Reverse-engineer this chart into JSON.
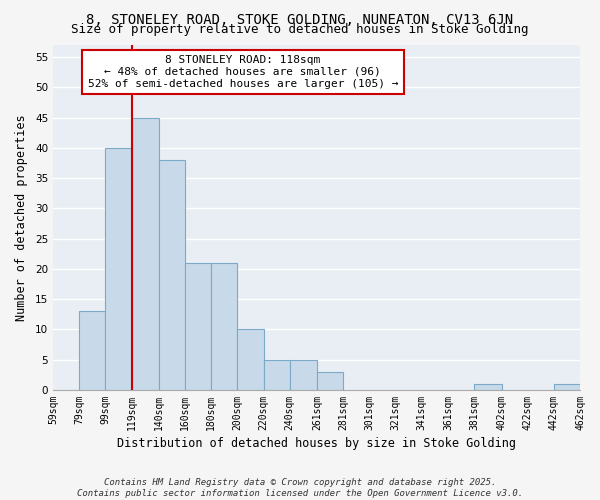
{
  "title": "8, STONELEY ROAD, STOKE GOLDING, NUNEATON, CV13 6JN",
  "subtitle": "Size of property relative to detached houses in Stoke Golding",
  "xlabel": "Distribution of detached houses by size in Stoke Golding",
  "ylabel": "Number of detached properties",
  "bar_color": "#c8daea",
  "bar_edge_color": "#7aaac8",
  "plot_bg_color": "#e8eef4",
  "fig_bg_color": "#f5f5f5",
  "grid_color": "#ffffff",
  "bins": [
    59,
    79,
    99,
    119,
    140,
    160,
    180,
    200,
    220,
    240,
    261,
    281,
    301,
    321,
    341,
    361,
    381,
    402,
    422,
    442,
    462
  ],
  "counts": [
    0,
    13,
    40,
    45,
    38,
    21,
    21,
    10,
    5,
    5,
    3,
    0,
    0,
    0,
    0,
    0,
    1,
    0,
    0,
    1,
    0
  ],
  "tick_labels": [
    "59sqm",
    "79sqm",
    "99sqm",
    "119sqm",
    "140sqm",
    "160sqm",
    "180sqm",
    "200sqm",
    "220sqm",
    "240sqm",
    "261sqm",
    "281sqm",
    "301sqm",
    "321sqm",
    "341sqm",
    "361sqm",
    "381sqm",
    "402sqm",
    "422sqm",
    "442sqm",
    "462sqm"
  ],
  "vline_x": 119,
  "vline_color": "#cc0000",
  "ylim": [
    0,
    57
  ],
  "yticks": [
    0,
    5,
    10,
    15,
    20,
    25,
    30,
    35,
    40,
    45,
    50,
    55
  ],
  "annotation_text": "8 STONELEY ROAD: 118sqm\n← 48% of detached houses are smaller (96)\n52% of semi-detached houses are larger (105) →",
  "footer1": "Contains HM Land Registry data © Crown copyright and database right 2025.",
  "footer2": "Contains public sector information licensed under the Open Government Licence v3.0.",
  "title_fontsize": 10,
  "subtitle_fontsize": 9,
  "label_fontsize": 8.5,
  "tick_fontsize": 7,
  "annotation_fontsize": 8,
  "footer_fontsize": 6.5
}
